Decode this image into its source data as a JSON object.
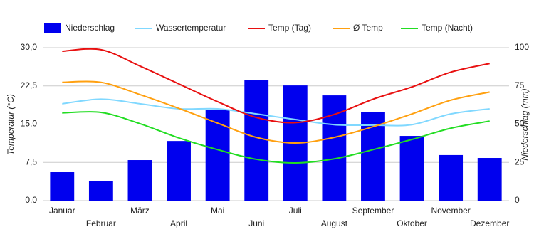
{
  "chart_data": {
    "type": "combo",
    "y_label": "Temperatur (°C)",
    "y2_label": "Niederschlag (mm)",
    "categories": [
      "Januar",
      "Februar",
      "März",
      "April",
      "Mai",
      "Juni",
      "Juli",
      "August",
      "September",
      "Oktober",
      "November",
      "Dezember"
    ],
    "ylim": [
      0,
      30
    ],
    "yticks": [
      {
        "value": 0,
        "label": "0,0"
      },
      {
        "value": 7.5,
        "label": "7,5"
      },
      {
        "value": 15,
        "label": "15,0"
      },
      {
        "value": 22.5,
        "label": "22,5"
      },
      {
        "value": 30,
        "label": "30,0"
      }
    ],
    "y2lim": [
      0,
      100
    ],
    "y2ticks": [
      0,
      25,
      50,
      75,
      100
    ],
    "grid": true,
    "legend": "top",
    "series": [
      {
        "name": "Niederschlag",
        "type": "bar",
        "axis": "y2",
        "color": "#0000ee",
        "values": [
          18.6,
          12.6,
          26.5,
          39,
          59.5,
          78.6,
          75.3,
          68.8,
          58,
          42.3,
          29.8,
          27.9
        ]
      },
      {
        "name": "Wassertemperatur",
        "type": "line",
        "color": "#80d8ff",
        "values": [
          19.0,
          19.9,
          19.0,
          18.0,
          18.0,
          17.0,
          15.9,
          14.9,
          14.8,
          14.9,
          17.0,
          18.0
        ]
      },
      {
        "name": "Temp (Tag)",
        "type": "line",
        "color": "#e81010",
        "values": [
          29.3,
          29.6,
          26.4,
          22.9,
          19.4,
          16.3,
          15.3,
          16.9,
          19.9,
          22.3,
          25.2,
          26.9
        ]
      },
      {
        "name": "Ø Temp",
        "type": "line",
        "color": "#ffa010",
        "values": [
          23.2,
          23.2,
          20.8,
          18.1,
          15.2,
          12.4,
          11.3,
          12.4,
          14.5,
          17.0,
          19.7,
          21.3
        ]
      },
      {
        "name": "Temp (Nacht)",
        "type": "line",
        "color": "#22dd22",
        "values": [
          17.2,
          17.3,
          15.1,
          12.3,
          10.0,
          8.1,
          7.4,
          8.2,
          10.0,
          12.0,
          14.2,
          15.6
        ]
      }
    ]
  }
}
